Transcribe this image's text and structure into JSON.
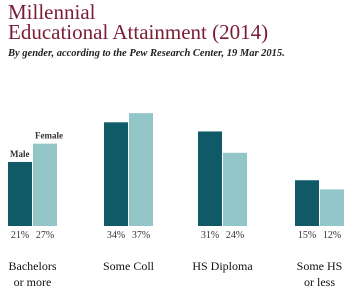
{
  "chart_data": {
    "type": "bar",
    "title": "Millennial\nEducational Attainment (2014)",
    "subtitle": "By gender, according to the Pew Research Center, 19 Mar 2015.",
    "categories": [
      "Bachelors\nor more",
      "Some Coll",
      "HS Diploma",
      "Some HS\nor less"
    ],
    "series": [
      {
        "name": "Male",
        "color": "#0f5a66",
        "values": [
          21,
          34,
          31,
          15
        ],
        "value_labels": [
          "21%",
          "34%",
          "31%",
          "15%"
        ]
      },
      {
        "name": "Female",
        "color": "#93c6c8",
        "values": [
          27,
          37,
          24,
          12
        ],
        "value_labels": [
          "27%",
          "37%",
          "24%",
          "12%"
        ]
      }
    ],
    "ylim": [
      0,
      40
    ]
  }
}
